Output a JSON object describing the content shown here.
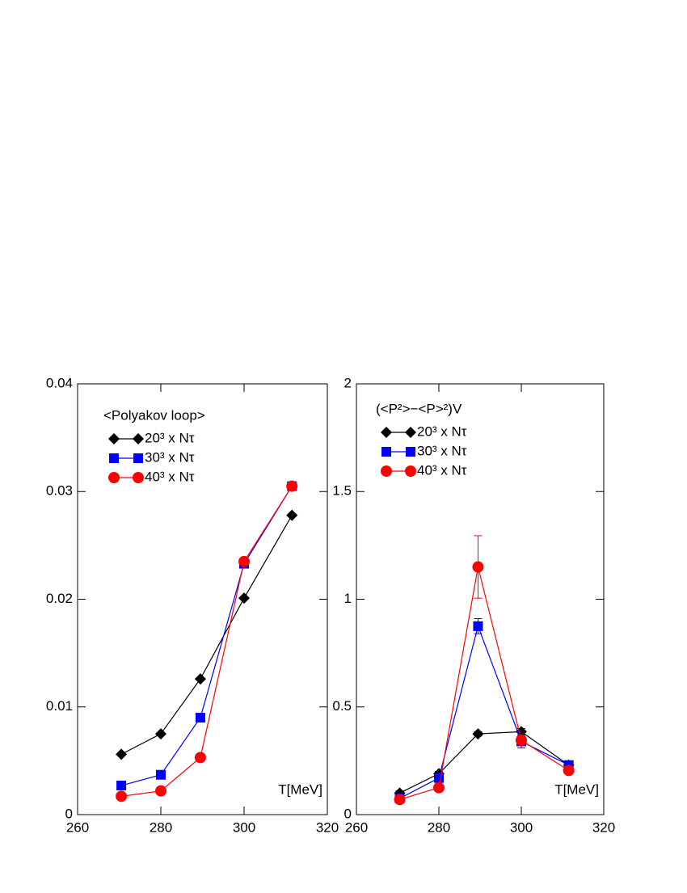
{
  "chart_data": [
    {
      "type": "line",
      "title": "<Polyakov loop>",
      "x_label": "T[MeV]",
      "x": [
        270.5,
        280,
        289.5,
        300,
        311.5
      ],
      "series": [
        {
          "name": "20³ x Nτ",
          "color": "#000000",
          "marker": "diamond",
          "values": [
            0.0056,
            0.0075,
            0.0126,
            0.0201,
            0.0278
          ]
        },
        {
          "name": "30³ x Nτ",
          "color": "#0000ff",
          "marker": "square",
          "values": [
            0.0027,
            0.0037,
            0.009,
            0.0233,
            0.0305
          ]
        },
        {
          "name": "40³ x Nτ",
          "color": "#ff0000",
          "marker": "circle",
          "values": [
            0.0017,
            0.0022,
            0.0053,
            0.0235,
            0.0305
          ]
        }
      ],
      "xlim": [
        260,
        320
      ],
      "xticks": [
        260,
        280,
        300,
        320
      ],
      "ylim": [
        0,
        0.04
      ],
      "yticks": [
        0,
        0.01,
        0.02,
        0.03,
        0.04
      ],
      "grid": false
    },
    {
      "type": "line",
      "title": "(<P²>−<P>²)V",
      "x_label": "T[MeV]",
      "x": [
        270.5,
        280,
        289.5,
        300,
        311.5
      ],
      "series": [
        {
          "name": "20³ x Nτ",
          "color": "#000000",
          "marker": "diamond",
          "values": [
            0.1,
            0.19,
            0.375,
            0.385,
            0.23
          ],
          "errors": [
            0.01,
            0.01,
            0.01,
            0.015,
            0.01
          ]
        },
        {
          "name": "30³ x Nτ",
          "color": "#0000ff",
          "marker": "square",
          "values": [
            0.075,
            0.17,
            0.875,
            0.34,
            0.23
          ],
          "errors": [
            0.01,
            0.015,
            0.035,
            0.03,
            0.01
          ]
        },
        {
          "name": "40³ x Nτ",
          "color": "#ff0000",
          "marker": "circle",
          "values": [
            0.07,
            0.125,
            1.15,
            0.345,
            0.205
          ],
          "errors": [
            0.01,
            0.01,
            0.145,
            0.02,
            0.01
          ]
        }
      ],
      "xlim": [
        260,
        320
      ],
      "xticks": [
        260,
        280,
        300,
        320
      ],
      "ylim": [
        0,
        2
      ],
      "yticks": [
        0,
        0.5,
        1,
        1.5,
        2
      ],
      "grid": false
    }
  ]
}
